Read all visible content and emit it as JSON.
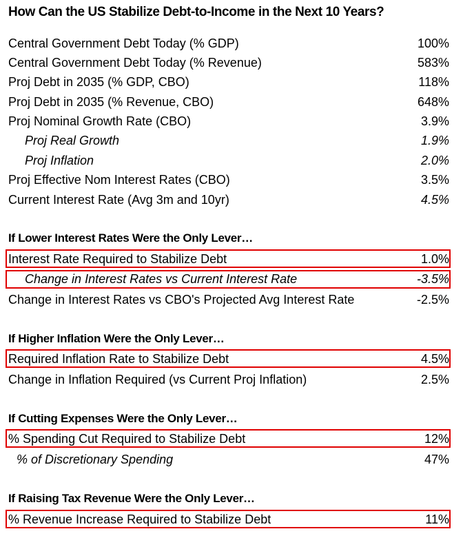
{
  "title": "How Can the US Stabilize Debt-to-Income in the Next 10 Years?",
  "highlight_color": "#e00000",
  "baseline": [
    {
      "label": "Central Government Debt Today (% GDP)",
      "value": "100%"
    },
    {
      "label": "Central Government Debt Today (% Revenue)",
      "value": "583%"
    },
    {
      "label": "Proj Debt in 2035 (% GDP, CBO)",
      "value": "118%"
    },
    {
      "label": "Proj Debt in 2035 (% Revenue, CBO)",
      "value": "648%"
    },
    {
      "label": "Proj Nominal Growth Rate (CBO)",
      "value": "3.9%"
    },
    {
      "label": "Proj Real Growth",
      "value": "1.9%"
    },
    {
      "label": "Proj Inflation",
      "value": "2.0%"
    },
    {
      "label": "Proj Effective Nom Interest Rates (CBO)",
      "value": "3.5%"
    },
    {
      "label": "Current Interest Rate (Avg 3m and 10yr)",
      "value": "4.5%"
    }
  ],
  "interest": {
    "heading": "If Lower Interest Rates Were the Only Lever…",
    "rows": [
      {
        "label": "Interest Rate Required to Stabilize Debt",
        "value": "1.0%"
      },
      {
        "label": "Change in Interest Rates vs Current Interest Rate",
        "value": "-3.5%"
      },
      {
        "label": "Change in Interest Rates vs CBO's Projected Avg Interest Rate",
        "value": "-2.5%"
      }
    ]
  },
  "inflation": {
    "heading": "If Higher Inflation Were the Only Lever…",
    "rows": [
      {
        "label": "Required Inflation Rate to Stabilize Debt",
        "value": "4.5%"
      },
      {
        "label": "Change in Inflation Required (vs Current Proj Inflation)",
        "value": "2.5%"
      }
    ]
  },
  "expenses": {
    "heading": "If Cutting Expenses Were the Only Lever…",
    "rows": [
      {
        "label": "% Spending Cut Required to Stabilize Debt",
        "value": "12%"
      },
      {
        "label": "% of Discretionary Spending",
        "value": "47%"
      }
    ]
  },
  "tax": {
    "heading": "If Raising Tax Revenue Were the Only Lever…",
    "rows": [
      {
        "label": "% Revenue Increase Required to Stabilize Debt",
        "value": "11%"
      }
    ]
  }
}
